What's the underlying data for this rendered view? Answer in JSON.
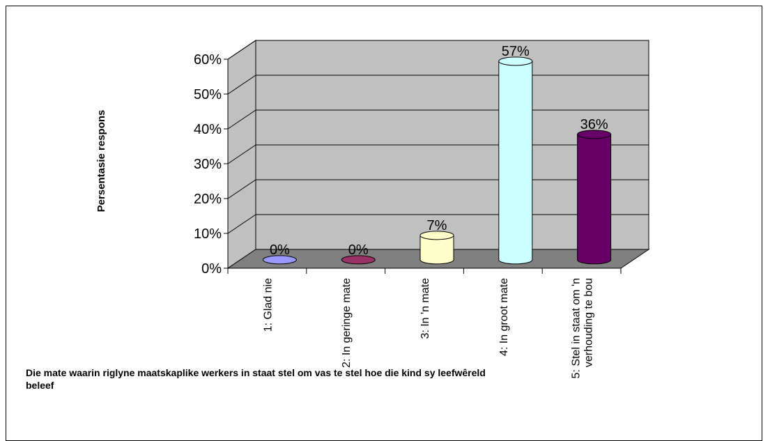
{
  "chart_data": {
    "type": "bar",
    "style": "3d-cylinder",
    "categories": [
      "1: Glad nie",
      "2: In geringe mate",
      "3: In 'n mate",
      "4: In groot mate",
      "5: Stel in staat om 'n verhouding te bou"
    ],
    "category_lines": [
      [
        "1: Glad nie"
      ],
      [
        "2: In geringe mate"
      ],
      [
        "3: In 'n mate"
      ],
      [
        "4: In groot mate"
      ],
      [
        "5: Stel in staat om 'n",
        "verhouding te bou"
      ]
    ],
    "values": [
      0,
      0,
      7,
      57,
      36
    ],
    "data_labels": [
      "0%",
      "0%",
      "7%",
      "57%",
      "36%"
    ],
    "colors": [
      "#9999ff",
      "#993366",
      "#ffffcc",
      "#ccffff",
      "#660066"
    ],
    "ylabel": "Persentasie respons",
    "xlabel": "Die mate waarin riglyne maatskaplike werkers in staat stel om vas te stel hoe die kind sy leefwêreld beleef",
    "ylim": [
      0,
      60
    ],
    "yticks": [
      0,
      10,
      20,
      30,
      40,
      50,
      60
    ],
    "ytick_labels": [
      "0%",
      "10%",
      "20%",
      "30%",
      "40%",
      "50%",
      "60%"
    ],
    "grid": true,
    "wall_color": "#c0c0c0",
    "floor_color": "#808080"
  }
}
